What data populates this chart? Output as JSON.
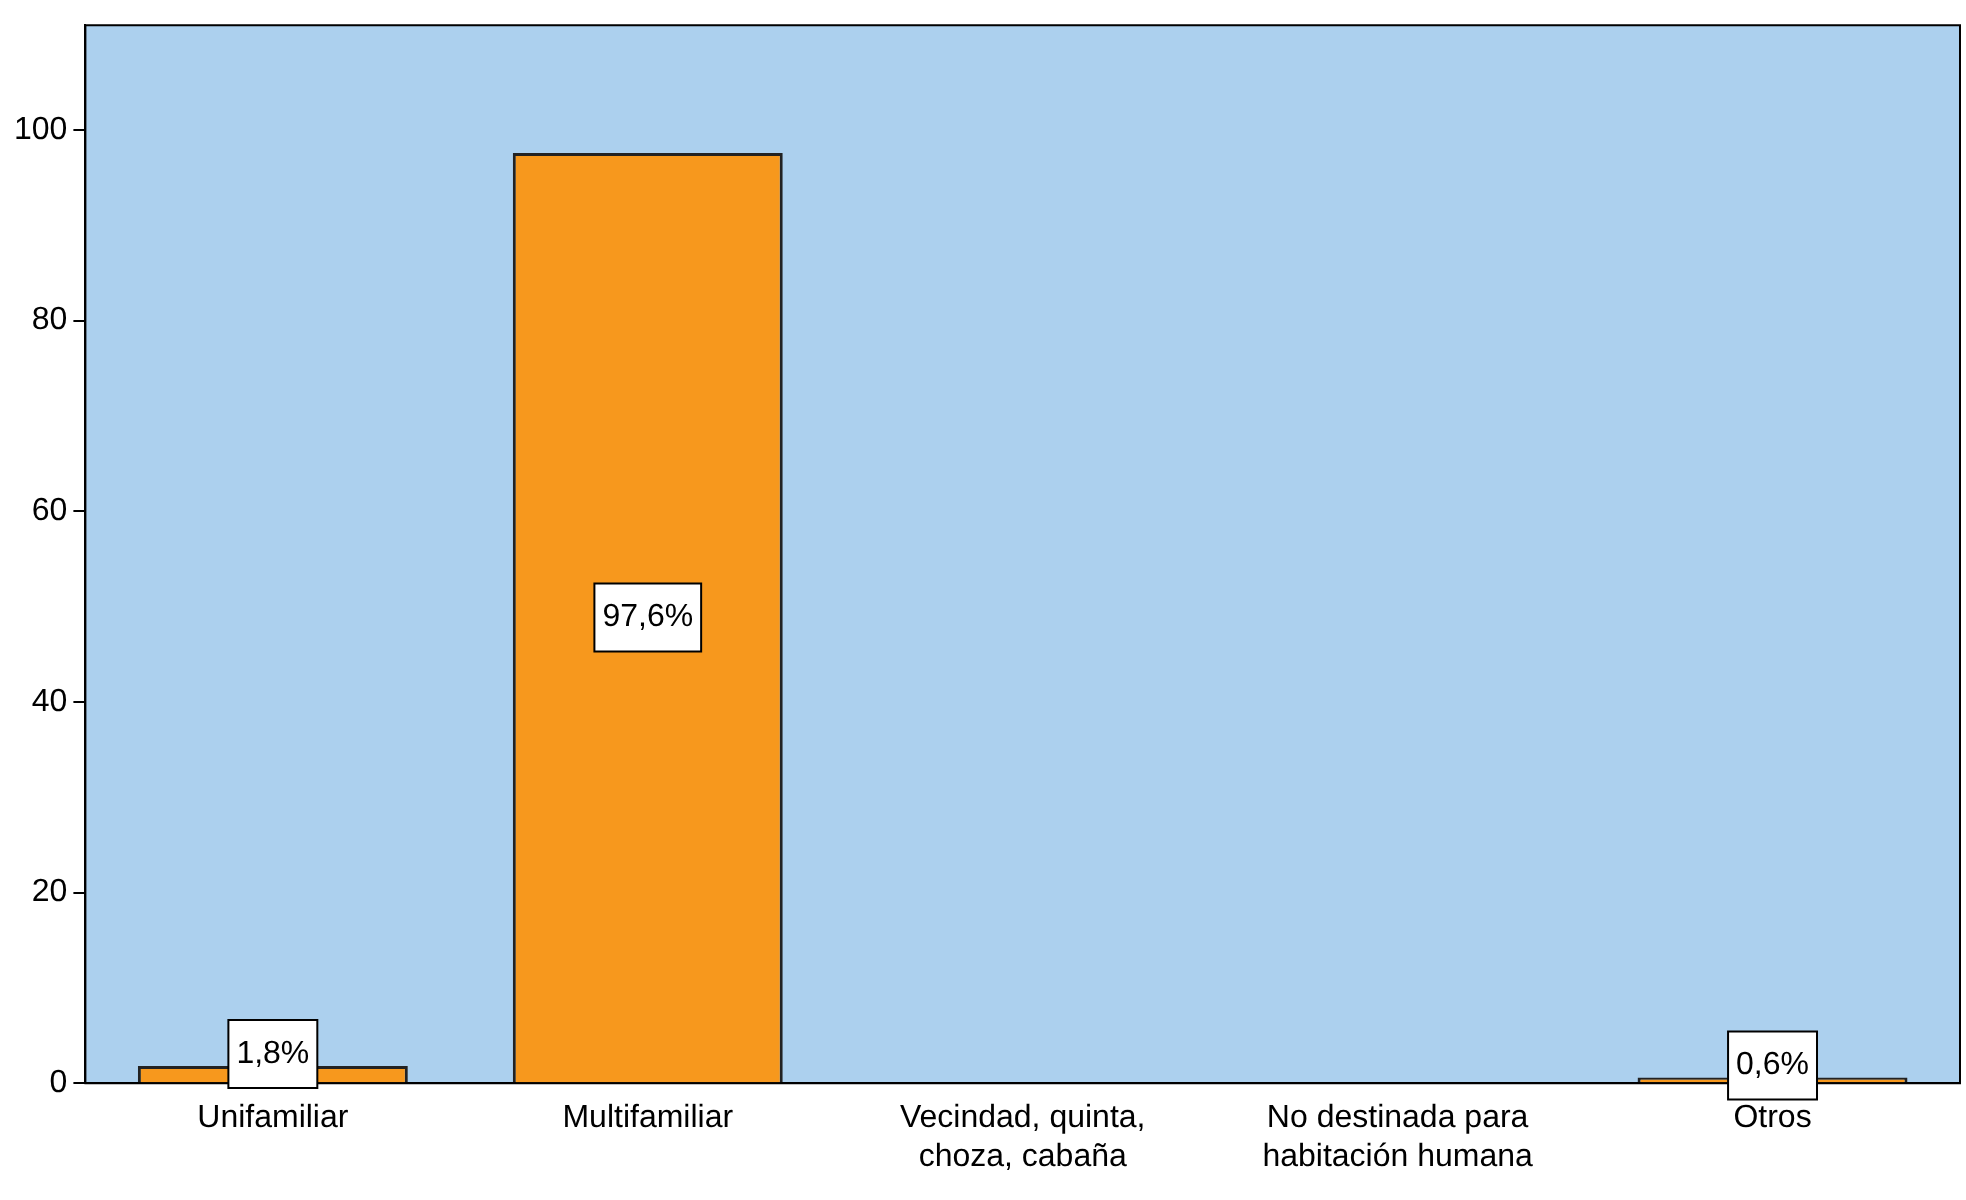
{
  "chart_data": {
    "type": "bar",
    "categories": [
      "Unifamiliar",
      "Multifamiliar",
      "Vecindad, quinta, choza, cabaña",
      "No destinada para habitación humana",
      "Otros"
    ],
    "values": [
      1.8,
      97.6,
      0,
      0,
      0.6
    ],
    "value_labels": [
      "1,8%",
      "97,6%",
      null,
      null,
      "0,6%"
    ],
    "color": "#f7981d",
    "ylim": [
      0,
      111
    ],
    "yticks": [
      0,
      20,
      40,
      60,
      80,
      100
    ],
    "grid": false,
    "legend": false
  }
}
